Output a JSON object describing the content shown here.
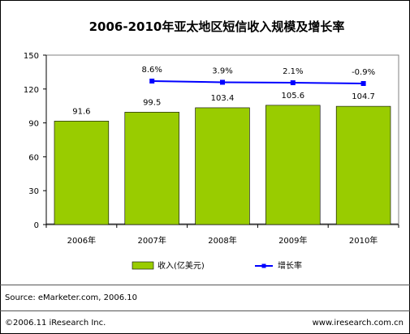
{
  "chart_data": {
    "type": "bar",
    "title": "2006-2010年亚太地区短信收入规模及增长率",
    "categories": [
      "2006年",
      "2007年",
      "2008年",
      "2009年",
      "2010年"
    ],
    "series": [
      {
        "name": "收入(亿美元)",
        "type": "bar",
        "axis": "left",
        "color": "#99cc00",
        "values": [
          91.6,
          99.5,
          103.4,
          105.6,
          104.7
        ],
        "labels": [
          "91.6",
          "99.5",
          "103.4",
          "105.6",
          "104.7"
        ]
      },
      {
        "name": "增长率",
        "type": "line",
        "axis": "secondary",
        "color": "#0000ff",
        "values": [
          null,
          8.6,
          3.9,
          2.1,
          -0.9
        ],
        "labels": [
          "",
          "8.6%",
          "3.9%",
          "2.1%",
          "-0.9%"
        ]
      }
    ],
    "ylim": [
      0,
      150
    ],
    "yticks": [
      "0",
      "30",
      "60",
      "90",
      "120",
      "150"
    ],
    "grid": false,
    "legend_position": "bottom"
  },
  "footer": {
    "source": "Source: eMarketer.com,  2006.10",
    "copyright": "©2006.11 iResearch Inc.",
    "website": "www.iresearch.com.cn"
  }
}
